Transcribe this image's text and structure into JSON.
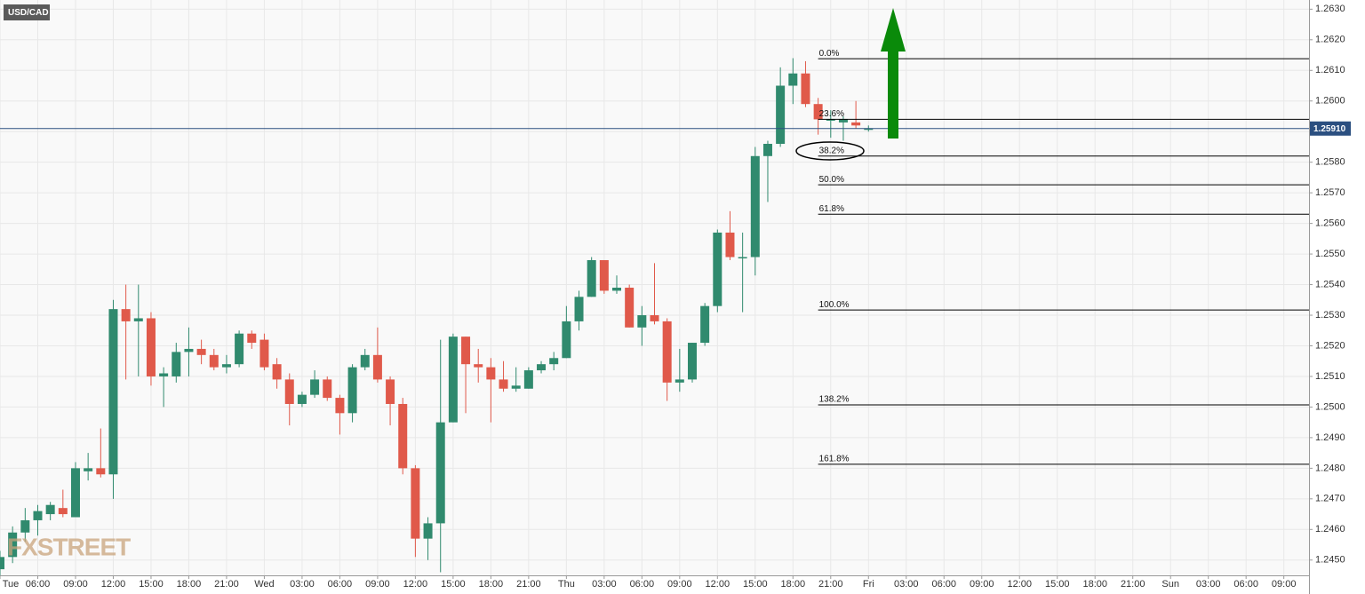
{
  "chart_data": {
    "type": "candlestick",
    "symbol": "USD/CAD",
    "watermark": "FXSTREET",
    "x": [
      3,
      4,
      5,
      6,
      7,
      8,
      9,
      10,
      11,
      12,
      13,
      14,
      15,
      16,
      17,
      18,
      19,
      20,
      21,
      22,
      23,
      24,
      25,
      26,
      27,
      28,
      29,
      30,
      31,
      32,
      33,
      34,
      35,
      36,
      37,
      38,
      39,
      40,
      41,
      42,
      43,
      44,
      45,
      46,
      47,
      48,
      49,
      50,
      51,
      52,
      53,
      54,
      55,
      56,
      57,
      58,
      59,
      60,
      61,
      62,
      63,
      64,
      65,
      66,
      67,
      68,
      69,
      70,
      71,
      72
    ],
    "open": [
      1.2447,
      1.2451,
      1.2459,
      1.2463,
      1.2465,
      1.2467,
      1.2464,
      1.2479,
      1.248,
      1.2478,
      1.2532,
      1.2528,
      1.2529,
      1.251,
      1.251,
      1.2518,
      1.2519,
      1.2517,
      1.2513,
      1.2514,
      1.2524,
      1.2522,
      1.2514,
      1.2509,
      1.2501,
      1.2504,
      1.2509,
      1.2503,
      1.2498,
      1.2513,
      1.2517,
      1.2509,
      1.2501,
      1.248,
      1.2457,
      1.2462,
      1.2495,
      1.2523,
      1.2514,
      1.2513,
      1.2509,
      1.2506,
      1.2506,
      1.2512,
      1.2514,
      1.2516,
      1.2528,
      1.2536,
      1.2548,
      1.2538,
      1.2539,
      1.2526,
      1.253,
      1.2528,
      1.2508,
      1.2509,
      1.2521,
      1.2533,
      1.2557,
      1.2549,
      1.2549,
      1.2582,
      1.2586,
      1.2605,
      1.2609,
      1.2599,
      1.2594,
      1.2593,
      1.2593,
      1.2591
    ],
    "high": [
      1.2453,
      1.2461,
      1.2467,
      1.2468,
      1.2469,
      1.2473,
      1.2482,
      1.2485,
      1.2493,
      1.2535,
      1.254,
      1.254,
      1.2531,
      1.2513,
      1.2521,
      1.2526,
      1.2522,
      1.2519,
      1.2517,
      1.2525,
      1.2525,
      1.2524,
      1.2516,
      1.2511,
      1.2505,
      1.2512,
      1.251,
      1.2504,
      1.2514,
      1.2519,
      1.2526,
      1.251,
      1.2503,
      1.2481,
      1.2464,
      1.2522,
      1.2524,
      1.2523,
      1.2519,
      1.2516,
      1.2515,
      1.2513,
      1.2513,
      1.2515,
      1.2518,
      1.2533,
      1.2538,
      1.2549,
      1.2548,
      1.2543,
      1.254,
      1.2533,
      1.2547,
      1.2529,
      1.2519,
      1.2521,
      1.2534,
      1.2558,
      1.2564,
      1.2557,
      1.2585,
      1.2587,
      1.2611,
      1.2614,
      1.2613,
      1.2601,
      1.2597,
      1.2595,
      1.26,
      1.2592
    ],
    "low": [
      1.2445,
      1.2449,
      1.2456,
      1.2458,
      1.2463,
      1.2464,
      1.2464,
      1.2476,
      1.2477,
      1.247,
      1.2509,
      1.251,
      1.2507,
      1.25,
      1.2508,
      1.251,
      1.2514,
      1.2512,
      1.2511,
      1.2513,
      1.2519,
      1.2512,
      1.2506,
      1.2494,
      1.25,
      1.2503,
      1.2502,
      1.2491,
      1.2495,
      1.2512,
      1.2508,
      1.2494,
      1.2478,
      1.2451,
      1.245,
      1.2446,
      1.2495,
      1.2498,
      1.2508,
      1.2495,
      1.2505,
      1.2505,
      1.2506,
      1.2511,
      1.2512,
      1.2516,
      1.2525,
      1.2536,
      1.2537,
      1.2537,
      1.2526,
      1.252,
      1.2527,
      1.2502,
      1.2505,
      1.2508,
      1.252,
      1.2531,
      1.2548,
      1.2531,
      1.2543,
      1.2567,
      1.2585,
      1.2599,
      1.2598,
      1.2589,
      1.2588,
      1.2587,
      1.2591,
      1.259
    ],
    "close": [
      1.2451,
      1.2459,
      1.2463,
      1.2466,
      1.2468,
      1.2465,
      1.248,
      1.248,
      1.2478,
      1.2532,
      1.2528,
      1.2529,
      1.251,
      1.2511,
      1.2518,
      1.2519,
      1.2517,
      1.2513,
      1.2514,
      1.2524,
      1.2521,
      1.2513,
      1.2509,
      1.2501,
      1.2504,
      1.2509,
      1.2503,
      1.2498,
      1.2513,
      1.2517,
      1.2509,
      1.2501,
      1.248,
      1.2457,
      1.2462,
      1.2495,
      1.2523,
      1.2514,
      1.2513,
      1.2509,
      1.2506,
      1.2507,
      1.2512,
      1.2514,
      1.2516,
      1.2528,
      1.2536,
      1.2548,
      1.2538,
      1.2539,
      1.2526,
      1.253,
      1.2528,
      1.2508,
      1.2509,
      1.2521,
      1.2533,
      1.2557,
      1.2549,
      1.2549,
      1.2582,
      1.2586,
      1.2605,
      1.2609,
      1.2599,
      1.2594,
      1.2594,
      1.2594,
      1.2592,
      1.2591
    ],
    "up_color": "#308a6e",
    "down_color": "#e0594a",
    "xlim": [
      3,
      107
    ],
    "xticks": [
      {
        "value": 3,
        "label": "Tue"
      },
      {
        "value": 6,
        "label": "06:00"
      },
      {
        "value": 9,
        "label": "09:00"
      },
      {
        "value": 12,
        "label": "12:00"
      },
      {
        "value": 15,
        "label": "15:00"
      },
      {
        "value": 18,
        "label": "18:00"
      },
      {
        "value": 21,
        "label": "21:00"
      },
      {
        "value": 24,
        "label": "Wed"
      },
      {
        "value": 27,
        "label": "03:00"
      },
      {
        "value": 30,
        "label": "06:00"
      },
      {
        "value": 33,
        "label": "09:00"
      },
      {
        "value": 36,
        "label": "12:00"
      },
      {
        "value": 39,
        "label": "15:00"
      },
      {
        "value": 42,
        "label": "18:00"
      },
      {
        "value": 45,
        "label": "21:00"
      },
      {
        "value": 48,
        "label": "Thu"
      },
      {
        "value": 51,
        "label": "03:00"
      },
      {
        "value": 54,
        "label": "06:00"
      },
      {
        "value": 57,
        "label": "09:00"
      },
      {
        "value": 60,
        "label": "12:00"
      },
      {
        "value": 63,
        "label": "15:00"
      },
      {
        "value": 66,
        "label": "18:00"
      },
      {
        "value": 69,
        "label": "21:00"
      },
      {
        "value": 72,
        "label": "Fri"
      },
      {
        "value": 75,
        "label": "03:00"
      },
      {
        "value": 78,
        "label": "06:00"
      },
      {
        "value": 81,
        "label": "09:00"
      },
      {
        "value": 84,
        "label": "12:00"
      },
      {
        "value": 87,
        "label": "15:00"
      },
      {
        "value": 90,
        "label": "18:00"
      },
      {
        "value": 93,
        "label": "21:00"
      },
      {
        "value": 96,
        "label": "Sun"
      },
      {
        "value": 99,
        "label": "03:00"
      },
      {
        "value": 102,
        "label": "06:00"
      },
      {
        "value": 105,
        "label": "09:00"
      }
    ],
    "ylim": [
      1.2445,
      1.2633
    ],
    "yticks": [
      {
        "value": 1.245,
        "label": "1.2450"
      },
      {
        "value": 1.246,
        "label": "1.2460"
      },
      {
        "value": 1.247,
        "label": "1.2470"
      },
      {
        "value": 1.248,
        "label": "1.2480"
      },
      {
        "value": 1.249,
        "label": "1.2490"
      },
      {
        "value": 1.25,
        "label": "1.2500"
      },
      {
        "value": 1.251,
        "label": "1.2510"
      },
      {
        "value": 1.252,
        "label": "1.2520"
      },
      {
        "value": 1.253,
        "label": "1.2530"
      },
      {
        "value": 1.254,
        "label": "1.2540"
      },
      {
        "value": 1.255,
        "label": "1.2550"
      },
      {
        "value": 1.256,
        "label": "1.2560"
      },
      {
        "value": 1.257,
        "label": "1.2570"
      },
      {
        "value": 1.258,
        "label": "1.2580"
      },
      {
        "value": 1.259,
        "label": "1.2590"
      },
      {
        "value": 1.26,
        "label": "1.2600"
      },
      {
        "value": 1.261,
        "label": "1.2610"
      },
      {
        "value": 1.262,
        "label": "1.2620"
      },
      {
        "value": 1.263,
        "label": "1.2630"
      }
    ],
    "grid": true,
    "last_price": {
      "value": 1.2591,
      "label": "1.25910"
    },
    "fib_start": 68,
    "fib_levels": [
      {
        "value": 1.26138,
        "label": "0.0%"
      },
      {
        "value": 1.2594,
        "label": "23.6%"
      },
      {
        "value": 1.2582,
        "label": "38.2%"
      },
      {
        "value": 1.25726,
        "label": "50.0%"
      },
      {
        "value": 1.2563,
        "label": "61.8%"
      },
      {
        "value": 1.25317,
        "label": "100.0%"
      },
      {
        "value": 1.25007,
        "label": "138.2%"
      },
      {
        "value": 1.24813,
        "label": "161.8%"
      }
    ]
  }
}
